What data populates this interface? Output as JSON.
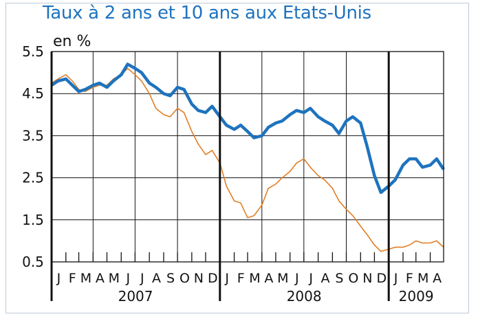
{
  "chart_data": {
    "type": "line",
    "title": "Taux à 2 ans et 10 ans aux Etats-Unis",
    "ylabel": "en %",
    "ylim": [
      0.5,
      5.5
    ],
    "yticks": [
      "0.5",
      "1.5",
      "2.5",
      "3.5",
      "4.5",
      "5.5"
    ],
    "xlim": [
      "2007-01-01",
      "2009-04-30"
    ],
    "grid": true,
    "legend": "none",
    "month_labels": [
      "J",
      "F",
      "M",
      "A",
      "M",
      "J",
      "J",
      "A",
      "S",
      "O",
      "N",
      "D",
      "J",
      "F",
      "M",
      "A",
      "M",
      "J",
      "J",
      "A",
      "S",
      "O",
      "N",
      "D",
      "J",
      "F",
      "M",
      "A"
    ],
    "year_labels": [
      {
        "label": "2007",
        "start": "2007-01-01",
        "end": "2007-12-31"
      },
      {
        "label": "2008",
        "start": "2008-01-01",
        "end": "2008-12-31"
      },
      {
        "label": "2009",
        "start": "2009-01-01",
        "end": "2009-04-30"
      }
    ],
    "series": [
      {
        "color": "#1e73be",
        "x": [
          "2007-01-01",
          "2007-01-15",
          "2007-02-01",
          "2007-02-15",
          "2007-03-01",
          "2007-03-15",
          "2007-04-01",
          "2007-04-15",
          "2007-05-01",
          "2007-05-15",
          "2007-06-01",
          "2007-06-15",
          "2007-07-01",
          "2007-07-15",
          "2007-08-01",
          "2007-08-15",
          "2007-09-01",
          "2007-09-15",
          "2007-10-01",
          "2007-10-15",
          "2007-11-01",
          "2007-11-15",
          "2007-12-01",
          "2007-12-15",
          "2008-01-01",
          "2008-01-15",
          "2008-02-01",
          "2008-02-15",
          "2008-03-01",
          "2008-03-15",
          "2008-04-01",
          "2008-04-15",
          "2008-05-01",
          "2008-05-15",
          "2008-06-01",
          "2008-06-15",
          "2008-07-01",
          "2008-07-15",
          "2008-08-01",
          "2008-08-15",
          "2008-09-01",
          "2008-09-15",
          "2008-10-01",
          "2008-10-15",
          "2008-11-01",
          "2008-11-15",
          "2008-12-01",
          "2008-12-15",
          "2009-01-01",
          "2009-01-15",
          "2009-02-01",
          "2009-02-15",
          "2009-03-01",
          "2009-03-15",
          "2009-04-01",
          "2009-04-15",
          "2009-04-30"
        ],
        "values": [
          4.7,
          4.8,
          4.85,
          4.7,
          4.55,
          4.6,
          4.7,
          4.75,
          4.65,
          4.8,
          4.95,
          5.2,
          5.1,
          5.0,
          4.75,
          4.65,
          4.5,
          4.45,
          4.65,
          4.6,
          4.25,
          4.1,
          4.05,
          4.2,
          3.95,
          3.75,
          3.65,
          3.75,
          3.6,
          3.45,
          3.5,
          3.7,
          3.8,
          3.85,
          4.0,
          4.1,
          4.05,
          4.15,
          3.95,
          3.85,
          3.75,
          3.55,
          3.85,
          3.95,
          3.8,
          3.25,
          2.55,
          2.15,
          2.3,
          2.45,
          2.8,
          2.95,
          2.95,
          2.75,
          2.8,
          2.95,
          2.7
        ]
      },
      {
        "color": "#e07e24",
        "x": [
          "2007-01-01",
          "2007-01-15",
          "2007-02-01",
          "2007-02-15",
          "2007-03-01",
          "2007-03-15",
          "2007-04-01",
          "2007-04-15",
          "2007-05-01",
          "2007-05-15",
          "2007-06-01",
          "2007-06-15",
          "2007-07-01",
          "2007-07-15",
          "2007-08-01",
          "2007-08-15",
          "2007-09-01",
          "2007-09-15",
          "2007-10-01",
          "2007-10-15",
          "2007-11-01",
          "2007-11-15",
          "2007-12-01",
          "2007-12-15",
          "2008-01-01",
          "2008-01-15",
          "2008-02-01",
          "2008-02-15",
          "2008-03-01",
          "2008-03-15",
          "2008-04-01",
          "2008-04-15",
          "2008-05-01",
          "2008-05-15",
          "2008-06-01",
          "2008-06-15",
          "2008-07-01",
          "2008-07-15",
          "2008-08-01",
          "2008-08-15",
          "2008-09-01",
          "2008-09-15",
          "2008-10-01",
          "2008-10-15",
          "2008-11-01",
          "2008-11-15",
          "2008-12-01",
          "2008-12-15",
          "2009-01-01",
          "2009-01-15",
          "2009-02-01",
          "2009-02-15",
          "2009-03-01",
          "2009-03-15",
          "2009-04-01",
          "2009-04-15",
          "2009-04-30"
        ],
        "values": [
          4.75,
          4.85,
          4.95,
          4.8,
          4.6,
          4.55,
          4.65,
          4.7,
          4.7,
          4.85,
          4.95,
          5.1,
          4.95,
          4.8,
          4.5,
          4.15,
          4.0,
          3.95,
          4.15,
          4.05,
          3.6,
          3.3,
          3.05,
          3.15,
          2.85,
          2.3,
          1.95,
          1.9,
          1.55,
          1.6,
          1.85,
          2.25,
          2.35,
          2.5,
          2.65,
          2.85,
          2.95,
          2.75,
          2.55,
          2.45,
          2.25,
          1.95,
          1.75,
          1.6,
          1.35,
          1.15,
          0.9,
          0.75,
          0.8,
          0.85,
          0.85,
          0.9,
          1.0,
          0.95,
          0.95,
          1.0,
          0.85
        ]
      }
    ]
  }
}
